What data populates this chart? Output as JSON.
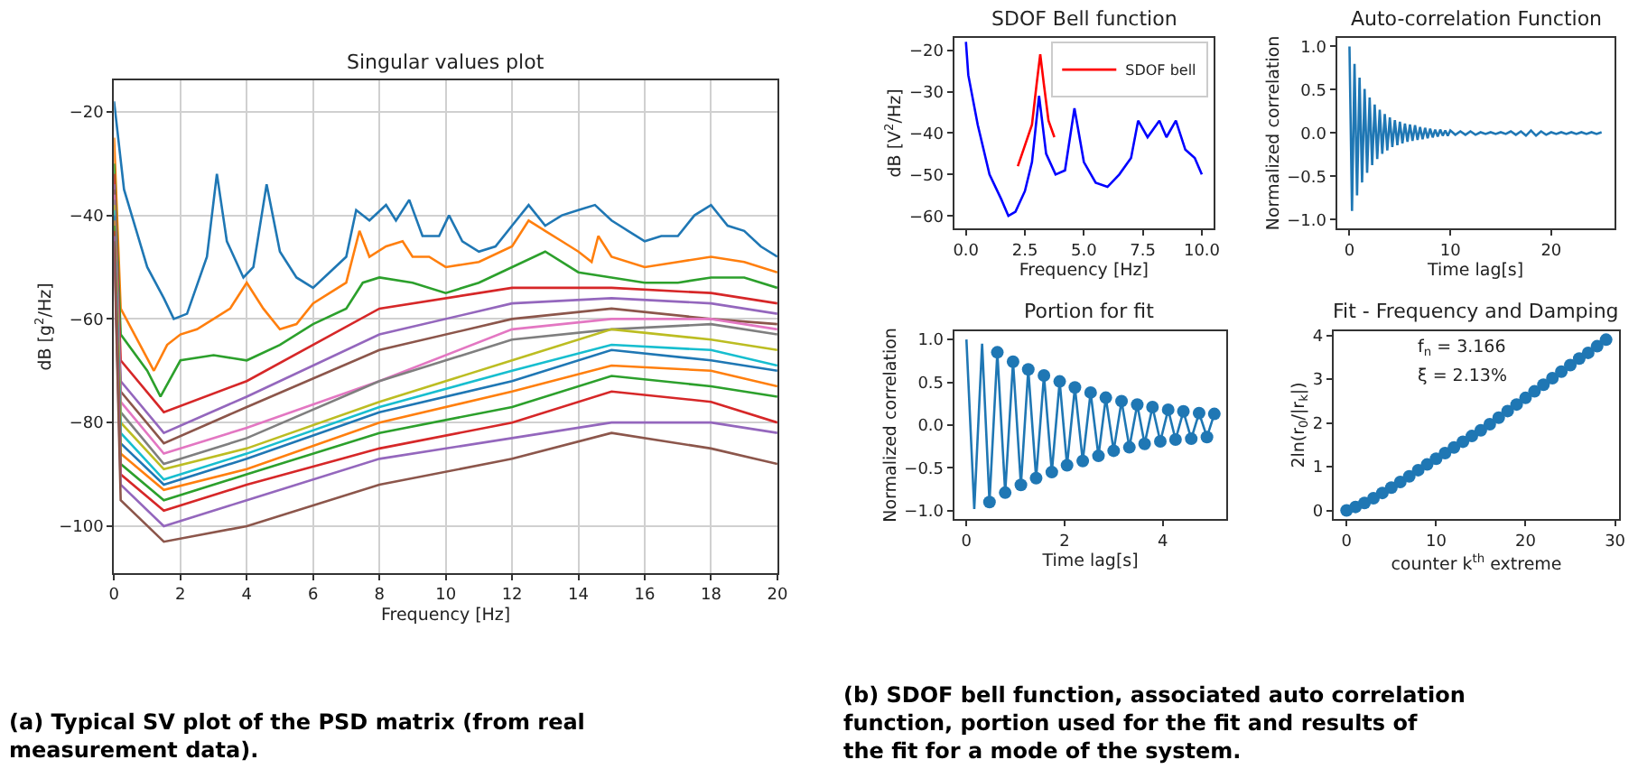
{
  "chart_data": [
    {
      "type": "line",
      "title": "Singular values plot",
      "xlabel": "Frequency [Hz]",
      "ylabel": "dB [g$^{2}$/Hz]",
      "xlim": [
        0,
        20
      ],
      "xticks": [
        0,
        2,
        4,
        6,
        8,
        10,
        12,
        14,
        16,
        18,
        20
      ],
      "ylim": [
        -109,
        -14
      ],
      "yticks": [
        {
          "value": -100,
          "label": "−100"
        },
        {
          "value": -80,
          "label": "−80"
        },
        {
          "value": -60,
          "label": "−60"
        },
        {
          "value": -40,
          "label": "−40"
        },
        {
          "value": -20,
          "label": "−20"
        }
      ],
      "grid": true,
      "annotations": [
        "(a) Typical SV plot of the PSD matrix (from real measurement data)."
      ],
      "x": [
        0,
        0.2,
        1.5,
        4,
        8,
        12,
        15,
        18,
        20
      ],
      "series": [
        {
          "color": "#1f77b4",
          "x": [
            0,
            0.3,
            1,
            1.5,
            1.8,
            2.2,
            2.8,
            3.1,
            3.4,
            3.9,
            4.2,
            4.6,
            5,
            5.5,
            6,
            6.5,
            7,
            7.3,
            7.7,
            8.2,
            8.5,
            8.9,
            9.3,
            9.8,
            10.1,
            10.5,
            11,
            11.5,
            12,
            12.5,
            13,
            13.5,
            14,
            14.5,
            15,
            15.5,
            16,
            16.5,
            17,
            17.5,
            18,
            18.5,
            19,
            19.5,
            20
          ],
          "values": [
            -18,
            -35,
            -50,
            -56,
            -60,
            -59,
            -48,
            -32,
            -45,
            -52,
            -50,
            -34,
            -47,
            -52,
            -54,
            -51,
            -48,
            -39,
            -41,
            -38,
            -41,
            -37,
            -44,
            -44,
            -40,
            -45,
            -47,
            -46,
            -42,
            -38,
            -42,
            -40,
            -39,
            -38,
            -41,
            -43,
            -45,
            -44,
            -44,
            -40,
            -38,
            -42,
            -43,
            -46,
            -48
          ]
        },
        {
          "color": "#ff7f0e",
          "x": [
            0,
            0.2,
            0.7,
            1.2,
            1.6,
            2,
            2.5,
            3,
            3.5,
            4,
            4.5,
            5,
            5.5,
            6,
            6.5,
            7,
            7.4,
            7.7,
            8.2,
            8.7,
            9,
            9.5,
            10,
            11,
            12,
            12.5,
            13,
            13.5,
            14,
            14.4,
            14.6,
            15,
            16,
            17,
            18,
            19,
            20
          ],
          "values": [
            -25,
            -58,
            -64,
            -70,
            -65,
            -63,
            -62,
            -60,
            -58,
            -53,
            -58,
            -62,
            -61,
            -57,
            -55,
            -53,
            -43,
            -48,
            -46,
            -45,
            -48,
            -48,
            -50,
            -49,
            -46,
            -41,
            -43,
            -45,
            -47,
            -49,
            -44,
            -48,
            -50,
            -49,
            -48,
            -49,
            -51
          ]
        },
        {
          "color": "#2ca02c",
          "x": [
            0,
            0.2,
            1,
            1.4,
            2,
            3,
            4,
            5,
            6,
            7,
            7.5,
            8,
            9,
            10,
            11,
            12,
            13,
            14,
            15,
            16,
            17,
            18,
            19,
            20
          ],
          "values": [
            -30,
            -63,
            -70,
            -75,
            -68,
            -67,
            -68,
            -65,
            -61,
            -58,
            -53,
            -52,
            -53,
            -55,
            -53,
            -50,
            -47,
            -51,
            -52,
            -53,
            -53,
            -52,
            -52,
            -54
          ]
        },
        {
          "color": "#d62728",
          "values": [
            -32,
            -68,
            -78,
            -72,
            -58,
            -54,
            -54,
            -55,
            -57
          ]
        },
        {
          "color": "#9467bd",
          "values": [
            -34,
            -72,
            -82,
            -75,
            -63,
            -57,
            -56,
            -57,
            -59
          ]
        },
        {
          "color": "#8c564b",
          "values": [
            -35,
            -74,
            -84,
            -77,
            -66,
            -60,
            -58,
            -60,
            -61
          ]
        },
        {
          "color": "#e377c2",
          "values": [
            -36,
            -76,
            -86,
            -81,
            -72,
            -62,
            -60,
            -60,
            -62
          ]
        },
        {
          "color": "#7f7f7f",
          "values": [
            -37,
            -78,
            -88,
            -83,
            -72,
            -64,
            -62,
            -61,
            -63
          ]
        },
        {
          "color": "#bcbd22",
          "values": [
            -38,
            -80,
            -89,
            -85,
            -76,
            -68,
            -62,
            -64,
            -66
          ]
        },
        {
          "color": "#17becf",
          "values": [
            -39,
            -82,
            -91,
            -86,
            -77,
            -70,
            -65,
            -66,
            -69
          ]
        },
        {
          "color": "#1f77b4",
          "values": [
            -40,
            -84,
            -92,
            -87,
            -78,
            -72,
            -66,
            -68,
            -70
          ]
        },
        {
          "color": "#ff7f0e",
          "values": [
            -41,
            -86,
            -93,
            -89,
            -80,
            -74,
            -69,
            -70,
            -73
          ]
        },
        {
          "color": "#2ca02c",
          "values": [
            -42,
            -88,
            -95,
            -90,
            -82,
            -77,
            -71,
            -73,
            -75
          ]
        },
        {
          "color": "#d62728",
          "values": [
            -43,
            -90,
            -97,
            -92,
            -85,
            -80,
            -74,
            -76,
            -80
          ]
        },
        {
          "color": "#9467bd",
          "values": [
            -44,
            -92,
            -100,
            -95,
            -87,
            -83,
            -80,
            -80,
            -82
          ]
        },
        {
          "color": "#8c564b",
          "values": [
            -45,
            -95,
            -103,
            -100,
            -92,
            -87,
            -82,
            -85,
            -88
          ]
        }
      ]
    },
    {
      "type": "line",
      "title": "SDOF Bell function",
      "xlabel": "Frequency [Hz]",
      "ylabel": "dB [V$^{2}$/Hz]",
      "xlim": [
        -0.5,
        10.5
      ],
      "xticks": [
        {
          "value": 0,
          "label": "0.0"
        },
        {
          "value": 2.5,
          "label": "2.5"
        },
        {
          "value": 5,
          "label": "5.0"
        },
        {
          "value": 7.5,
          "label": "7.5"
        },
        {
          "value": 10,
          "label": "10.0"
        }
      ],
      "ylim": [
        -63,
        -17
      ],
      "yticks": [
        {
          "value": -60,
          "label": "−60"
        },
        {
          "value": -50,
          "label": "−50"
        },
        {
          "value": -40,
          "label": "−40"
        },
        {
          "value": -30,
          "label": "−30"
        },
        {
          "value": -20,
          "label": "−20"
        }
      ],
      "legend": "top right",
      "annotations": [
        "(b) SDOF bell function, associated auto correlation function, portion used for the fit and results of the fit for a mode of the system."
      ],
      "series": [
        {
          "color": "#0000ff",
          "x": [
            0,
            0.1,
            0.5,
            1,
            1.5,
            1.8,
            2.1,
            2.5,
            2.8,
            3.1,
            3.4,
            3.8,
            4.2,
            4.6,
            5,
            5.5,
            6,
            6.5,
            7,
            7.3,
            7.7,
            8.2,
            8.5,
            8.9,
            9.3,
            9.7,
            10
          ],
          "values": [
            -18,
            -26,
            -38,
            -50,
            -56,
            -60,
            -59,
            -54,
            -47,
            -31,
            -45,
            -50,
            -49,
            -34,
            -47,
            -52,
            -53,
            -50,
            -46,
            -37,
            -41,
            -37,
            -41,
            -37,
            -44,
            -46,
            -50
          ]
        },
        {
          "name": "SDOF bell",
          "color": "#ff0000",
          "x": [
            2.2,
            2.5,
            2.8,
            3.0,
            3.15,
            3.3,
            3.5,
            3.75
          ],
          "values": [
            -48,
            -43,
            -38,
            -28,
            -21,
            -28,
            -37,
            -41
          ]
        }
      ]
    },
    {
      "type": "line",
      "title": "Auto-correlation Function",
      "xlabel": "Time lag[s]",
      "ylabel": "Normalized correlation",
      "xlim": [
        -1.25,
        26.25
      ],
      "xticks": [
        0,
        10,
        20
      ],
      "ylim": [
        -1.1,
        1.1
      ],
      "yticks": [
        {
          "value": -1,
          "label": "−1.0"
        },
        {
          "value": -0.5,
          "label": "−0.5"
        },
        {
          "value": 0,
          "label": "0.0"
        },
        {
          "value": 0.5,
          "label": "0.5"
        },
        {
          "value": 1,
          "label": "1.0"
        }
      ],
      "series": [
        {
          "color": "#1f77b4",
          "x": [
            0,
            0.25,
            0.5,
            0.75,
            1,
            1.25,
            1.5,
            1.75,
            2,
            2.25,
            2.5,
            2.75,
            3,
            3.25,
            3.5,
            3.75,
            4,
            4.25,
            4.5,
            4.75,
            5,
            5.25,
            5.5,
            5.75,
            6,
            6.25,
            6.5,
            6.75,
            7,
            7.25,
            7.5,
            7.75,
            8,
            8.25,
            8.5,
            8.75,
            9,
            9.25,
            9.5,
            9.75,
            10,
            10.5,
            11,
            11.5,
            12,
            12.5,
            13,
            13.5,
            14,
            14.5,
            15,
            15.5,
            16,
            16.5,
            17,
            17.5,
            18,
            18.5,
            19,
            19.5,
            20,
            20.5,
            21,
            21.5,
            22,
            22.5,
            23,
            23.5,
            24,
            24.5,
            25
          ],
          "values": [
            1.0,
            -0.9,
            0.8,
            -0.72,
            0.64,
            -0.57,
            0.51,
            -0.46,
            0.41,
            -0.37,
            0.33,
            -0.3,
            0.27,
            -0.24,
            0.22,
            -0.2,
            0.18,
            -0.16,
            0.15,
            -0.14,
            0.13,
            -0.12,
            0.11,
            -0.1,
            0.1,
            -0.09,
            0.09,
            -0.08,
            0.07,
            -0.07,
            0.06,
            -0.06,
            0.05,
            -0.05,
            0.04,
            -0.04,
            0.04,
            -0.03,
            0.03,
            -0.03,
            0.03,
            -0.02,
            0.02,
            -0.02,
            0.02,
            -0.02,
            0.01,
            -0.01,
            0.01,
            -0.01,
            0.01,
            -0.01,
            0.02,
            -0.02,
            0.02,
            -0.03,
            0.03,
            -0.03,
            0.02,
            -0.02,
            0.01,
            -0.01,
            0.01,
            -0.01,
            0.01,
            -0.01,
            0.01,
            -0.01,
            0.01,
            -0.01,
            0.01
          ]
        }
      ]
    },
    {
      "type": "line",
      "title": "Portion for fit",
      "xlabel": "Time lag[s]",
      "ylabel": "Normalized correlation",
      "xlim": [
        -0.25,
        5.3
      ],
      "xticks": [
        0,
        2,
        4
      ],
      "ylim": [
        -1.1,
        1.1
      ],
      "yticks": [
        {
          "value": -1,
          "label": "−1.0"
        },
        {
          "value": -0.5,
          "label": "−0.5"
        },
        {
          "value": 0,
          "label": "0.0"
        },
        {
          "value": 0.5,
          "label": "0.5"
        },
        {
          "value": 1,
          "label": "1.0"
        }
      ],
      "series": [
        {
          "color": "#1f77b4",
          "x": [
            0,
            0.16,
            0.32,
            0.47,
            0.63,
            0.79,
            0.95,
            1.11,
            1.26,
            1.42,
            1.58,
            1.74,
            1.9,
            2.05,
            2.21,
            2.37,
            2.53,
            2.69,
            2.84,
            3.0,
            3.16,
            3.32,
            3.48,
            3.63,
            3.79,
            3.95,
            4.11,
            4.26,
            4.42,
            4.58,
            4.74,
            4.9,
            5.05
          ],
          "values": [
            1.0,
            -0.98,
            0.95,
            -0.9,
            0.85,
            -0.79,
            0.74,
            -0.7,
            0.65,
            -0.62,
            0.58,
            -0.55,
            0.51,
            -0.47,
            0.44,
            -0.42,
            0.38,
            -0.36,
            0.32,
            -0.3,
            0.28,
            -0.26,
            0.24,
            -0.22,
            0.21,
            -0.19,
            0.18,
            -0.17,
            0.16,
            -0.16,
            0.14,
            -0.14,
            0.13
          ]
        },
        {
          "type": "scatter",
          "marker": "circle",
          "color": "#1f77b4",
          "x": [
            0.47,
            0.63,
            0.79,
            0.95,
            1.11,
            1.26,
            1.42,
            1.58,
            1.74,
            1.9,
            2.05,
            2.21,
            2.37,
            2.53,
            2.69,
            2.84,
            3.0,
            3.16,
            3.32,
            3.48,
            3.63,
            3.79,
            3.95,
            4.11,
            4.26,
            4.42,
            4.58,
            4.74,
            4.9,
            5.05
          ],
          "values": [
            -0.9,
            0.85,
            -0.79,
            0.74,
            -0.7,
            0.65,
            -0.62,
            0.58,
            -0.55,
            0.51,
            -0.47,
            0.44,
            -0.42,
            0.38,
            -0.36,
            0.32,
            -0.3,
            0.28,
            -0.26,
            0.24,
            -0.22,
            0.21,
            -0.19,
            0.18,
            -0.17,
            0.16,
            -0.16,
            0.14,
            -0.14,
            0.13
          ]
        }
      ]
    },
    {
      "type": "scatter",
      "title": "Fit - Frequency and Damping",
      "xlabel": "counter k$^{th}$ extreme",
      "ylabel": "2ln(r$_{0}$/|r$_{k}$|)",
      "xlim": [
        -1.45,
        30.45
      ],
      "xticks": [
        0,
        10,
        20,
        30
      ],
      "ylim": [
        -0.2,
        4.1
      ],
      "yticks": [
        0,
        1,
        2,
        3,
        4
      ],
      "marker": "circle",
      "annotations": [
        "f$_{n}$ = 3.166",
        "ξ = 2.13%"
      ],
      "x": [
        0,
        1,
        2,
        3,
        4,
        5,
        6,
        7,
        8,
        9,
        10,
        11,
        12,
        13,
        14,
        15,
        16,
        17,
        18,
        19,
        20,
        21,
        22,
        23,
        24,
        25,
        26,
        27,
        28,
        29
      ],
      "series": [
        {
          "color": "#1f77b4",
          "values": [
            0,
            0.08,
            0.17,
            0.28,
            0.4,
            0.52,
            0.65,
            0.78,
            0.92,
            1.05,
            1.18,
            1.31,
            1.44,
            1.57,
            1.7,
            1.83,
            1.97,
            2.12,
            2.27,
            2.42,
            2.57,
            2.72,
            2.87,
            3.02,
            3.17,
            3.32,
            3.47,
            3.6,
            3.75,
            3.9
          ]
        }
      ]
    }
  ]
}
